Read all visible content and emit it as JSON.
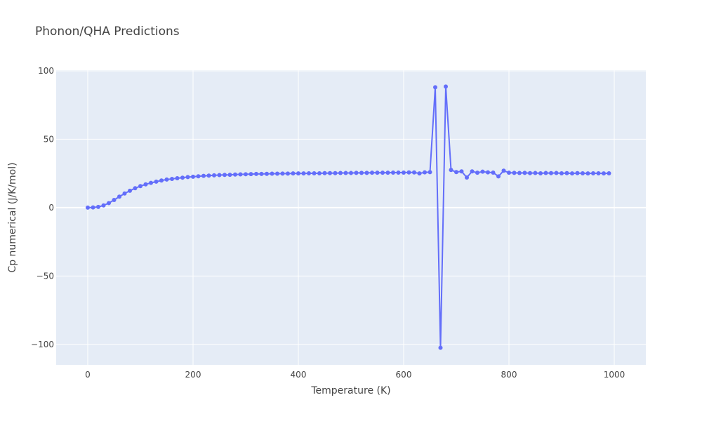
{
  "chart_data": {
    "type": "line",
    "title": "Phonon/QHA Predictions",
    "xlabel": "Temperature (K)",
    "ylabel": "Cp numerical (J/K/mol)",
    "xlim": [
      -60,
      1060
    ],
    "ylim": [
      -115,
      100.5
    ],
    "xticks": [
      0,
      200,
      400,
      600,
      800,
      1000
    ],
    "xtick_labels": [
      "0",
      "200",
      "400",
      "600",
      "800",
      "1000"
    ],
    "yticks": [
      -100,
      -50,
      0,
      50,
      100
    ],
    "ytick_labels": [
      "−100",
      "−50",
      "0",
      "50",
      "100"
    ],
    "grid": true,
    "legend": false,
    "colors": {
      "series": "#636efa",
      "plot_bg": "#e5ecf6",
      "grid": "#ffffff",
      "text": "#444444"
    },
    "series": [
      {
        "mode": "lines+markers",
        "x": [
          0,
          10,
          20,
          30,
          40,
          50,
          60,
          70,
          80,
          90,
          100,
          110,
          120,
          130,
          140,
          150,
          160,
          170,
          180,
          190,
          200,
          210,
          220,
          230,
          240,
          250,
          260,
          270,
          280,
          290,
          300,
          310,
          320,
          330,
          340,
          350,
          360,
          370,
          380,
          390,
          400,
          410,
          420,
          430,
          440,
          450,
          460,
          470,
          480,
          490,
          500,
          510,
          520,
          530,
          540,
          550,
          560,
          570,
          580,
          590,
          600,
          610,
          620,
          630,
          640,
          650,
          660,
          670,
          680,
          690,
          700,
          710,
          720,
          730,
          740,
          750,
          760,
          770,
          780,
          790,
          800,
          810,
          820,
          830,
          840,
          850,
          860,
          870,
          880,
          890,
          900,
          910,
          920,
          930,
          940,
          950,
          960,
          970,
          980,
          990
        ],
        "y": [
          0,
          0.1,
          0.5,
          1.6,
          3.3,
          5.6,
          8.0,
          10.3,
          12.3,
          14.2,
          15.7,
          17.0,
          18.1,
          19.0,
          19.8,
          20.5,
          21.0,
          21.5,
          21.9,
          22.3,
          22.6,
          22.9,
          23.2,
          23.4,
          23.6,
          23.8,
          23.9,
          24.0,
          24.2,
          24.3,
          24.4,
          24.5,
          24.6,
          24.6,
          24.7,
          24.8,
          24.8,
          24.9,
          24.9,
          25.0,
          25.0,
          25.0,
          25.1,
          25.1,
          25.1,
          25.2,
          25.2,
          25.2,
          25.3,
          25.3,
          25.3,
          25.4,
          25.4,
          25.4,
          25.5,
          25.5,
          25.5,
          25.5,
          25.6,
          25.6,
          25.6,
          25.7,
          25.7,
          25.0,
          25.8,
          25.9,
          88.0,
          -102.5,
          88.5,
          27.5,
          26.0,
          26.5,
          22.0,
          26.5,
          25.5,
          26.3,
          25.8,
          25.6,
          22.8,
          27.0,
          25.5,
          25.4,
          25.3,
          25.4,
          25.2,
          25.3,
          25.1,
          25.3,
          25.2,
          25.3,
          25.1,
          25.2,
          25.0,
          25.2,
          25.1,
          25.0,
          25.1,
          25.1,
          25.0,
          25.1
        ]
      }
    ]
  }
}
